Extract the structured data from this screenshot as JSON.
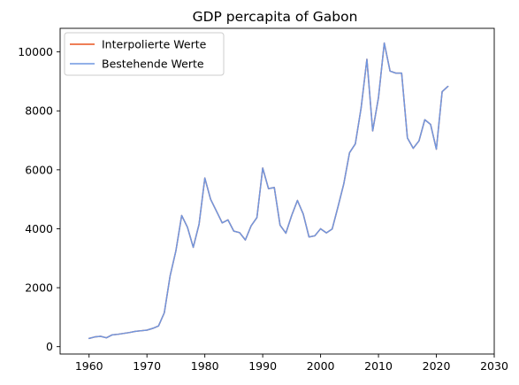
{
  "chart_data": {
    "type": "line",
    "title": "GDP percapita of Gabon",
    "xlabel": "",
    "ylabel": "",
    "xlim": [
      1955,
      2030
    ],
    "ylim": [
      -250,
      10800
    ],
    "xticks": [
      1960,
      1970,
      1980,
      1990,
      2000,
      2010,
      2020,
      2030
    ],
    "yticks": [
      0,
      2000,
      4000,
      6000,
      8000,
      10000
    ],
    "grid": false,
    "legend_position": "top-left",
    "x": [
      1960,
      1961,
      1962,
      1963,
      1964,
      1965,
      1966,
      1967,
      1968,
      1969,
      1970,
      1971,
      1972,
      1973,
      1974,
      1975,
      1976,
      1977,
      1978,
      1979,
      1980,
      1981,
      1982,
      1983,
      1984,
      1985,
      1986,
      1987,
      1988,
      1989,
      1990,
      1991,
      1992,
      1993,
      1994,
      1995,
      1996,
      1997,
      1998,
      1999,
      2000,
      2001,
      2002,
      2003,
      2004,
      2005,
      2006,
      2007,
      2008,
      2009,
      2010,
      2011,
      2012,
      2013,
      2014,
      2015,
      2016,
      2017,
      2018,
      2019,
      2020,
      2021,
      2022
    ],
    "series": [
      {
        "name": "Interpolierte Werte",
        "color": "#e8541f",
        "values": [
          280,
          330,
          350,
          300,
          400,
          420,
          450,
          480,
          520,
          540,
          560,
          620,
          700,
          1150,
          2400,
          3250,
          4450,
          4050,
          3370,
          4150,
          5720,
          5000,
          4600,
          4200,
          4300,
          3920,
          3870,
          3620,
          4100,
          4380,
          6060,
          5360,
          5400,
          4120,
          3850,
          4450,
          4960,
          4500,
          3720,
          3760,
          4000,
          3860,
          3990,
          4740,
          5520,
          6580,
          6880,
          8100,
          9750,
          7320,
          8450,
          10300,
          9350,
          9280,
          9280,
          7080,
          6730,
          6980,
          7700,
          7540,
          6700,
          8650,
          8830
        ]
      },
      {
        "name": "Bestehende Werte",
        "color": "#6f97e0",
        "values": [
          280,
          330,
          350,
          300,
          400,
          420,
          450,
          480,
          520,
          540,
          560,
          620,
          700,
          1150,
          2400,
          3250,
          4450,
          4050,
          3370,
          4150,
          5720,
          5000,
          4600,
          4200,
          4300,
          3920,
          3870,
          3620,
          4100,
          4380,
          6060,
          5360,
          5400,
          4120,
          3850,
          4450,
          4960,
          4500,
          3720,
          3760,
          4000,
          3860,
          3990,
          4740,
          5520,
          6580,
          6880,
          8100,
          9750,
          7320,
          8450,
          10300,
          9350,
          9280,
          9280,
          7080,
          6730,
          6980,
          7700,
          7540,
          6700,
          8650,
          8830
        ]
      }
    ]
  }
}
